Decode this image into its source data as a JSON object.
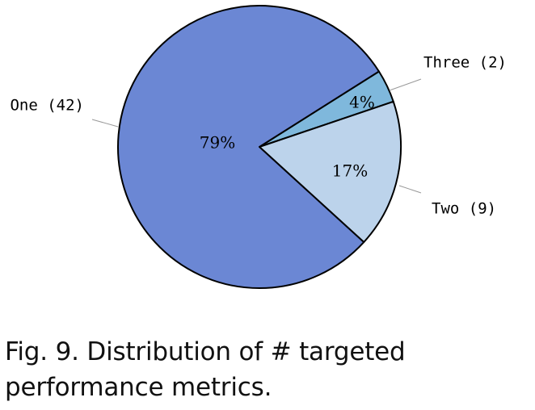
{
  "figure": {
    "caption_label": "Fig. 9.",
    "caption_text": "Distribution of # targeted performance metrics."
  },
  "chart_data": {
    "type": "pie",
    "slices": [
      {
        "label": "One (42)",
        "category": "One",
        "count": 42,
        "percent_label": "79%",
        "color": "#6b87d4"
      },
      {
        "label": "Two (9)",
        "category": "Two",
        "count": 9,
        "percent_label": "17%",
        "color": "#bcd3eb"
      },
      {
        "label": "Three (2)",
        "category": "Three",
        "count": 2,
        "percent_label": "4%",
        "color": "#7fb8dc"
      }
    ],
    "direction": "clockwise",
    "stroke_color": "#000000"
  }
}
